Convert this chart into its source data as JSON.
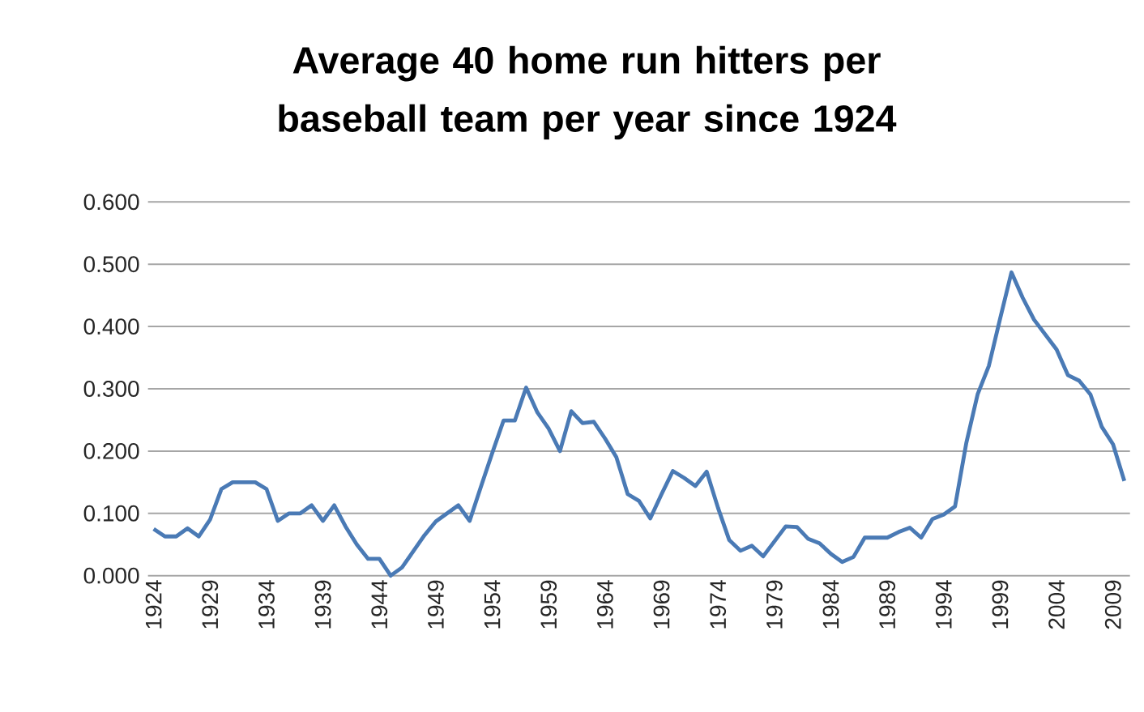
{
  "chart_data": {
    "type": "line",
    "title": "Average 40 home run hitters per baseball team per year since 1924",
    "x": [
      1924,
      1925,
      1926,
      1927,
      1928,
      1929,
      1930,
      1931,
      1932,
      1933,
      1934,
      1935,
      1936,
      1937,
      1938,
      1939,
      1940,
      1941,
      1942,
      1943,
      1944,
      1945,
      1946,
      1947,
      1948,
      1949,
      1950,
      1951,
      1952,
      1953,
      1954,
      1955,
      1956,
      1957,
      1958,
      1959,
      1960,
      1961,
      1962,
      1963,
      1964,
      1965,
      1966,
      1967,
      1968,
      1969,
      1970,
      1971,
      1972,
      1973,
      1974,
      1975,
      1976,
      1977,
      1978,
      1979,
      1980,
      1981,
      1982,
      1983,
      1984,
      1985,
      1986,
      1987,
      1988,
      1989,
      1990,
      1991,
      1992,
      1993,
      1994,
      1995,
      1996,
      1997,
      1998,
      1999,
      2000,
      2001,
      2002,
      2003,
      2004,
      2005,
      2006,
      2007,
      2008,
      2009,
      2010
    ],
    "series": [
      {
        "color": "#4a7ab5",
        "values": [
          0.075,
          0.063,
          0.063,
          0.076,
          0.063,
          0.09,
          0.139,
          0.15,
          0.15,
          0.15,
          0.139,
          0.088,
          0.1,
          0.1,
          0.113,
          0.088,
          0.113,
          0.079,
          0.05,
          0.027,
          0.027,
          0.0,
          0.013,
          0.039,
          0.065,
          0.087,
          0.1,
          0.113,
          0.088,
          0.143,
          0.197,
          0.249,
          0.249,
          0.302,
          0.262,
          0.236,
          0.2,
          0.264,
          0.245,
          0.247,
          0.22,
          0.19,
          0.131,
          0.12,
          0.092,
          0.131,
          0.168,
          0.157,
          0.144,
          0.167,
          0.109,
          0.057,
          0.04,
          0.048,
          0.031,
          0.055,
          0.079,
          0.078,
          0.059,
          0.052,
          0.035,
          0.022,
          0.03,
          0.061,
          0.061,
          0.061,
          0.07,
          0.077,
          0.061,
          0.091,
          0.098,
          0.111,
          0.213,
          0.291,
          0.337,
          0.413,
          0.487,
          0.446,
          0.411,
          0.387,
          0.363,
          0.322,
          0.313,
          0.291,
          0.239,
          0.211,
          0.152
        ]
      }
    ],
    "xlim": [
      1923.5,
      2010.5
    ],
    "xticks": [
      1924,
      1929,
      1934,
      1939,
      1944,
      1949,
      1954,
      1959,
      1964,
      1969,
      1974,
      1979,
      1984,
      1989,
      1994,
      1999,
      2004,
      2009
    ],
    "ylim": [
      0,
      0.6
    ],
    "yticks": [
      {
        "value": 0,
        "label": "0.000"
      },
      {
        "value": 0.1,
        "label": "0.100"
      },
      {
        "value": 0.2,
        "label": "0.200"
      },
      {
        "value": 0.3,
        "label": "0.300"
      },
      {
        "value": 0.4,
        "label": "0.400"
      },
      {
        "value": 0.5,
        "label": "0.500"
      },
      {
        "value": 0.6,
        "label": "0.600"
      }
    ],
    "grid": "y"
  }
}
